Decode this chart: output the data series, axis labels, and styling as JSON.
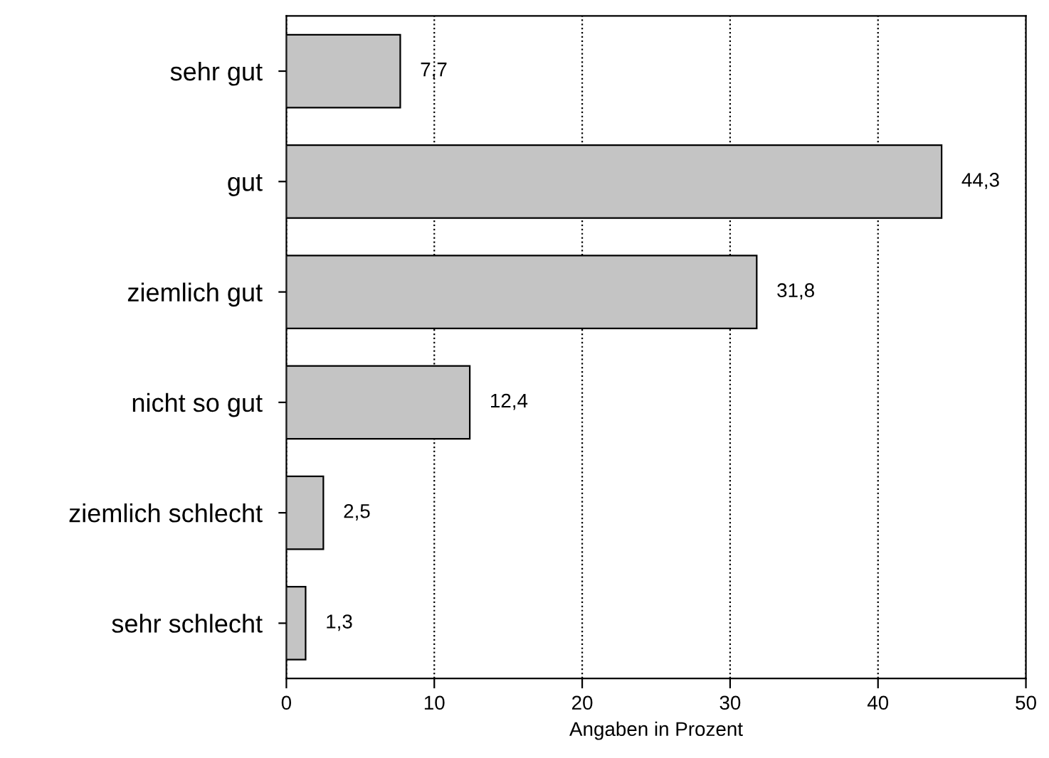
{
  "chart_data": {
    "type": "bar",
    "orientation": "horizontal",
    "xlabel": "Angaben in Prozent",
    "categories": [
      "sehr gut",
      "gut",
      "ziemlich gut",
      "nicht so gut",
      "ziemlich schlecht",
      "sehr schlecht"
    ],
    "values": [
      7.7,
      44.3,
      31.8,
      12.4,
      2.5,
      1.3
    ],
    "value_labels": [
      "7,7",
      "44,3",
      "31,8",
      "12,4",
      "2,5",
      "1,3"
    ],
    "color": "#c4c4c4",
    "xlim": [
      0,
      50
    ],
    "xticks": [
      0,
      10,
      20,
      30,
      40,
      50
    ],
    "grid": "x"
  }
}
